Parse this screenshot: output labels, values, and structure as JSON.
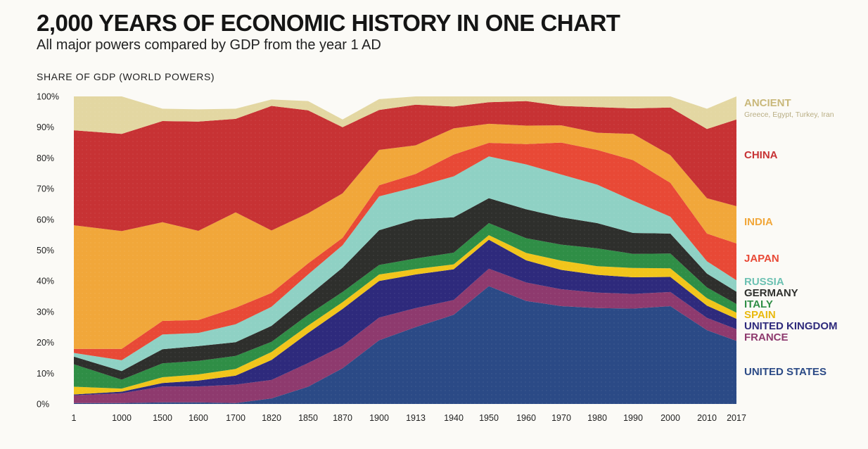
{
  "header": {
    "title": "2,000 YEARS OF ECONOMIC HISTORY IN ONE CHART",
    "subtitle": "All major powers compared by GDP from the year 1 AD"
  },
  "chart_data": {
    "type": "area",
    "stacked": true,
    "title": "2,000 YEARS OF ECONOMIC HISTORY IN ONE CHART",
    "subtitle": "All major powers compared by GDP from the year 1 AD",
    "ylabel": "SHARE OF GDP (WORLD POWERS)",
    "xlabel": "",
    "ylim": [
      0,
      100
    ],
    "y_ticks": [
      "0%",
      "10%",
      "20%",
      "30%",
      "40%",
      "50%",
      "60%",
      "70%",
      "80%",
      "90%",
      "100%"
    ],
    "categories": [
      "1",
      "1000",
      "1500",
      "1600",
      "1700",
      "1820",
      "1850",
      "1870",
      "1900",
      "1913",
      "1940",
      "1950",
      "1960",
      "1970",
      "1980",
      "1990",
      "2000",
      "2010",
      "2017"
    ],
    "legend_position": "right",
    "grid": false,
    "series": [
      {
        "name": "UNITED STATES",
        "color": "#2b4a86",
        "values": [
          0.3,
          0.3,
          0.5,
          0.5,
          0.3,
          1.8,
          5.6,
          11.6,
          20.7,
          25.0,
          29.0,
          38.3,
          33.5,
          31.8,
          31.2,
          31.0,
          31.8,
          24.0,
          20.5
        ]
      },
      {
        "name": "FRANCE",
        "color": "#8e3a6e",
        "values": [
          2.5,
          3.2,
          5.2,
          5.2,
          6.0,
          6.0,
          7.7,
          7.3,
          7.4,
          6.2,
          4.8,
          5.7,
          6.0,
          5.5,
          5.0,
          4.8,
          4.6,
          4.0,
          3.8
        ]
      },
      {
        "name": "UNITED KINGDOM",
        "color": "#2e2a7c",
        "values": [
          0.3,
          0.5,
          1.1,
          1.9,
          2.9,
          6.5,
          9.8,
          12.0,
          11.9,
          10.9,
          10.0,
          9.4,
          7.2,
          6.3,
          5.8,
          5.4,
          4.9,
          4.0,
          3.4
        ]
      },
      {
        "name": "SPAIN",
        "color": "#f1c51b",
        "values": [
          2.5,
          1.0,
          1.9,
          2.0,
          2.2,
          2.6,
          2.4,
          2.2,
          2.1,
          1.8,
          1.6,
          1.5,
          2.4,
          3.0,
          2.8,
          3.0,
          2.8,
          2.4,
          2.0
        ]
      },
      {
        "name": "ITALY",
        "color": "#2f8e46",
        "values": [
          7.3,
          2.9,
          4.5,
          4.4,
          4.2,
          3.3,
          3.5,
          3.3,
          3.1,
          3.4,
          3.8,
          3.9,
          4.8,
          5.2,
          5.8,
          4.6,
          4.8,
          3.5,
          2.8
        ]
      },
      {
        "name": "GERMANY",
        "color": "#2e2f2c",
        "values": [
          2.5,
          2.8,
          4.6,
          4.8,
          4.5,
          5.2,
          6.1,
          7.9,
          11.3,
          12.7,
          11.5,
          8.1,
          9.4,
          8.9,
          8.2,
          6.8,
          6.5,
          4.5,
          4.0
        ]
      },
      {
        "name": "RUSSIA",
        "color": "#8fd1c4",
        "values": [
          1.2,
          3.5,
          4.8,
          4.3,
          5.8,
          6.2,
          7.0,
          7.3,
          11.0,
          10.5,
          13.3,
          13.6,
          14.6,
          13.9,
          12.5,
          10.5,
          5.5,
          4.0,
          3.7
        ]
      },
      {
        "name": "JAPAN",
        "color": "#e84936",
        "values": [
          1.3,
          3.7,
          4.4,
          4.2,
          5.4,
          4.5,
          3.6,
          2.4,
          3.6,
          4.3,
          7.1,
          4.4,
          6.6,
          10.4,
          11.3,
          13.2,
          11.0,
          9.0,
          12.0
        ]
      },
      {
        "name": "INDIA",
        "color": "#f1a73a",
        "values": [
          40.2,
          38.3,
          32.1,
          29.0,
          31.0,
          20.3,
          16.3,
          14.5,
          11.5,
          9.3,
          8.5,
          6.2,
          6.0,
          5.6,
          5.6,
          8.5,
          9.0,
          11.5,
          12.1
        ]
      },
      {
        "name": "CHINA",
        "color": "#c73234",
        "values": [
          30.9,
          31.6,
          32.9,
          35.5,
          30.4,
          40.5,
          33.5,
          21.5,
          13.0,
          13.2,
          7.1,
          7.0,
          8.0,
          6.3,
          8.3,
          8.3,
          15.5,
          22.5,
          28.2
        ]
      },
      {
        "name": "ANCIENT",
        "color": "#e3d7a2",
        "values": [
          11.0,
          12.2,
          4.0,
          4.0,
          3.3,
          2.1,
          3.0,
          2.5,
          3.5,
          2.7,
          3.3,
          2.6,
          3.0,
          3.5,
          3.5,
          4.9,
          4.1,
          6.6,
          7.5
        ]
      }
    ]
  },
  "legend": [
    {
      "key": "ancient",
      "label": "ANCIENT",
      "sublabel": "Greece, Egypt, Turkey, Iran"
    },
    {
      "key": "china",
      "label": "CHINA"
    },
    {
      "key": "india",
      "label": "INDIA"
    },
    {
      "key": "japan",
      "label": "JAPAN"
    },
    {
      "key": "russia",
      "label": "RUSSIA"
    },
    {
      "key": "germany",
      "label": "GERMANY"
    },
    {
      "key": "italy",
      "label": "ITALY"
    },
    {
      "key": "spain",
      "label": "SPAIN"
    },
    {
      "key": "uk",
      "label": "UNITED KINGDOM"
    },
    {
      "key": "france",
      "label": "FRANCE"
    },
    {
      "key": "us",
      "label": "UNITED STATES"
    }
  ]
}
